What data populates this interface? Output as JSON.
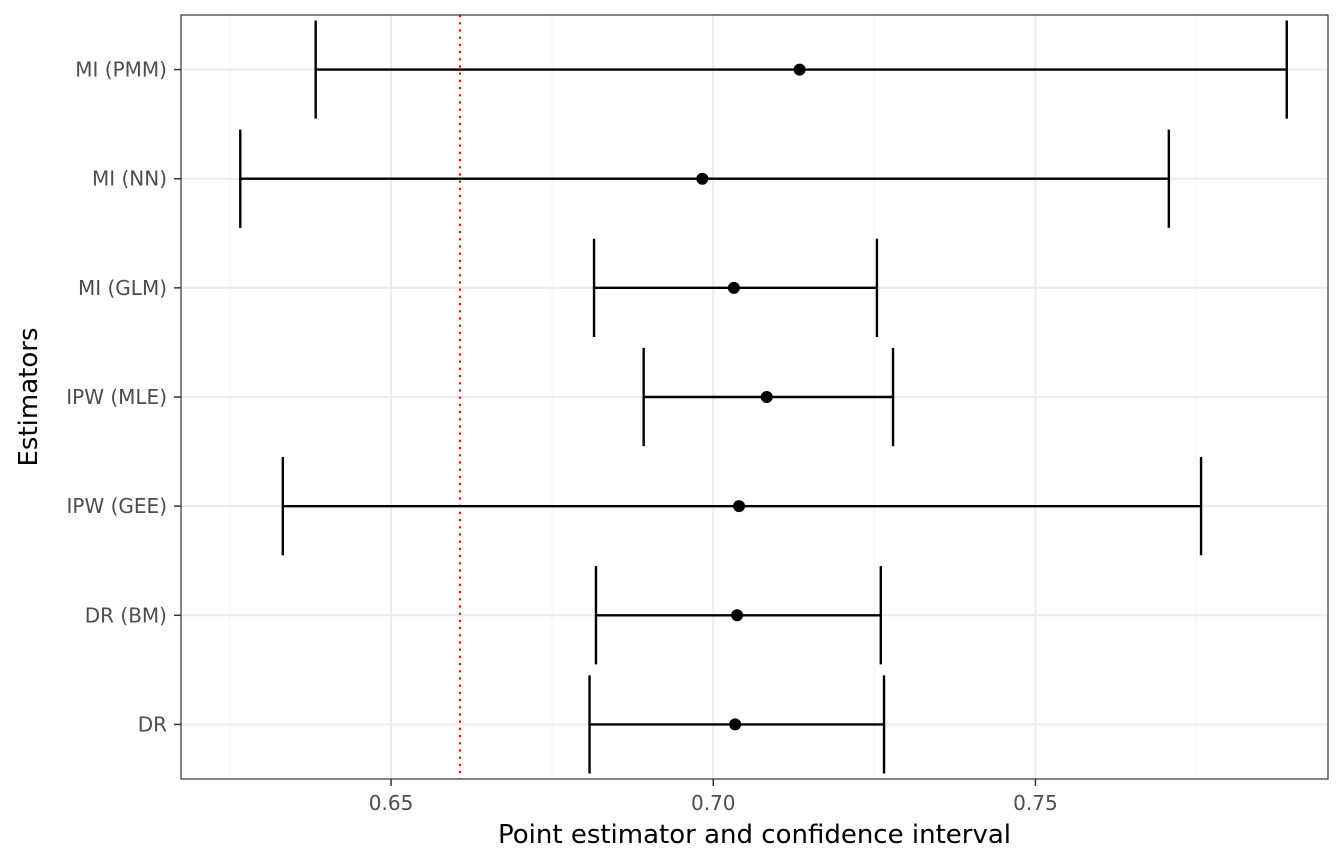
{
  "chart_data": {
    "type": "errorbar",
    "title": "",
    "xlabel": "Point estimator and confidence interval",
    "ylabel": "Estimators",
    "xlim": [
      0.6174,
      0.7954
    ],
    "x_ticks": [
      0.65,
      0.7,
      0.75
    ],
    "x_tick_labels": [
      "0.65",
      "0.70",
      "0.75"
    ],
    "x_minor_ticks": [
      0.625,
      0.675,
      0.725,
      0.775
    ],
    "grid": true,
    "reference_line": {
      "x": 0.6607,
      "style": "dotted",
      "color": "#ff0000"
    },
    "estimators": [
      {
        "label": "MI (PMM)",
        "estimate": 0.7134,
        "lower": 0.6383,
        "upper": 0.789
      },
      {
        "label": "MI (NN)",
        "estimate": 0.6983,
        "lower": 0.6266,
        "upper": 0.7707
      },
      {
        "label": "MI (GLM)",
        "estimate": 0.7032,
        "lower": 0.6815,
        "upper": 0.7254
      },
      {
        "label": "IPW (MLE)",
        "estimate": 0.7083,
        "lower": 0.6892,
        "upper": 0.7279
      },
      {
        "label": "IPW (GEE)",
        "estimate": 0.704,
        "lower": 0.6332,
        "upper": 0.7757
      },
      {
        "label": "DR (BM)",
        "estimate": 0.7037,
        "lower": 0.6818,
        "upper": 0.726
      },
      {
        "label": "DR",
        "estimate": 0.7034,
        "lower": 0.6808,
        "upper": 0.7265
      }
    ]
  },
  "colors": {
    "panel_border": "#333333",
    "grid_major": "#ebebeb",
    "grid_minor": "#f5f5f5",
    "errorbar": "#000000",
    "point": "#000000",
    "reference": "#ff0000"
  }
}
